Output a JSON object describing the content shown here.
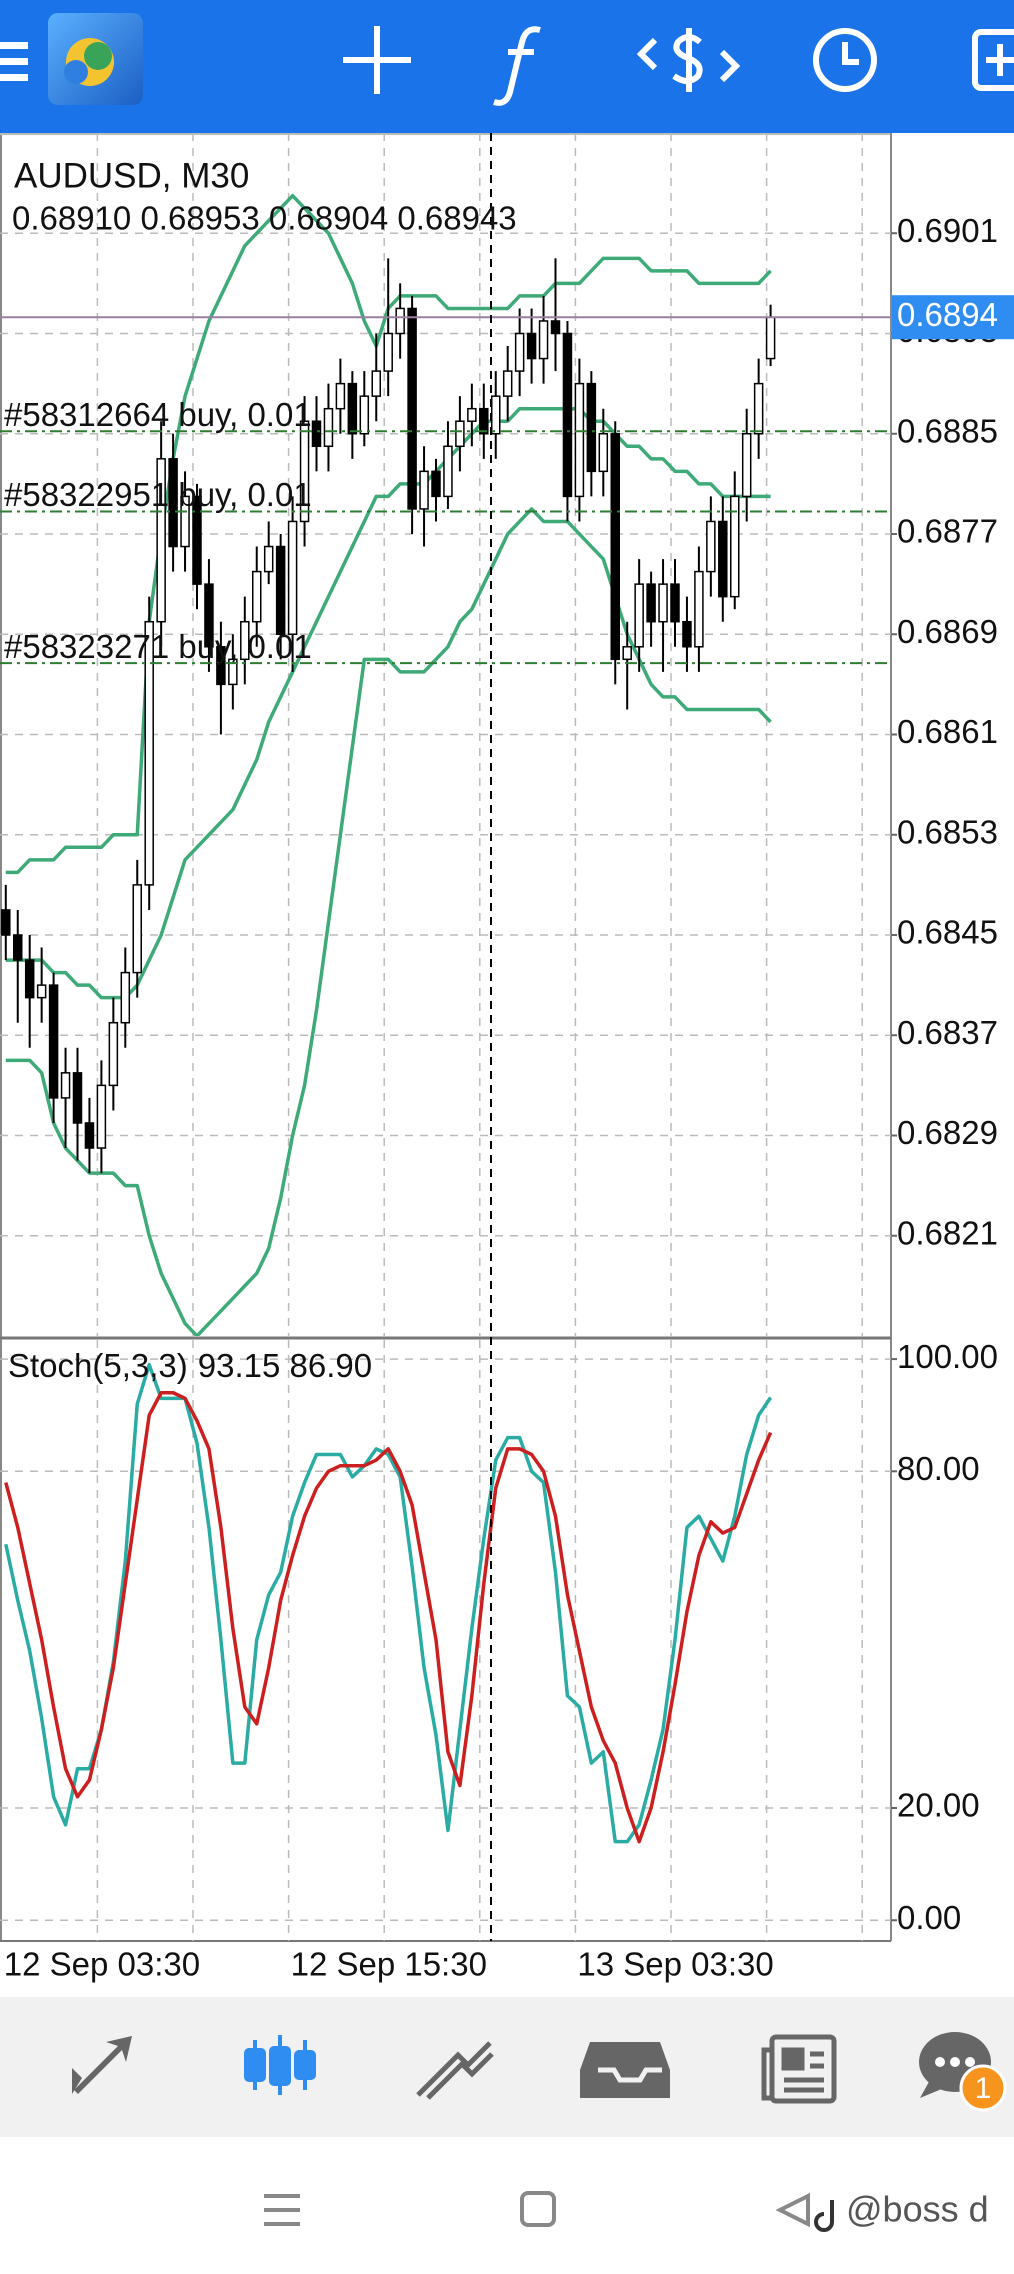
{
  "chart_data": [
    {
      "type": "candlestick",
      "title": "AUDUSD, M30",
      "subtitle": "0.68910 0.68953 0.68904 0.68943",
      "open": [
        0.6847,
        0.6845,
        0.6843,
        0.684,
        0.6841,
        0.6832,
        0.6834,
        0.683,
        0.6828,
        0.6833,
        0.6838,
        0.6842,
        0.6849,
        0.687,
        0.6883,
        0.6876,
        0.688,
        0.6873,
        0.6868,
        0.6865,
        0.6867,
        0.687,
        0.6874,
        0.6876,
        0.6869,
        0.6878,
        0.6886,
        0.6884,
        0.6887,
        0.6889,
        0.6885,
        0.6888,
        0.689,
        0.6893,
        0.6895,
        0.6879,
        0.6882,
        0.688,
        0.6884,
        0.6886,
        0.6887,
        0.6885,
        0.6888,
        0.689,
        0.6893,
        0.6891,
        0.6894,
        0.6893,
        0.688,
        0.6889,
        0.6882,
        0.6885,
        0.6867,
        0.6868,
        0.6873,
        0.687,
        0.6873,
        0.687,
        0.6868,
        0.6874,
        0.6878,
        0.6872,
        0.688,
        0.6885,
        0.6891
      ],
      "high": [
        0.6849,
        0.6847,
        0.6845,
        0.6844,
        0.6842,
        0.6836,
        0.6836,
        0.6832,
        0.6835,
        0.684,
        0.6844,
        0.6851,
        0.6872,
        0.6886,
        0.6885,
        0.6882,
        0.6881,
        0.6875,
        0.687,
        0.6869,
        0.6872,
        0.6876,
        0.6878,
        0.6877,
        0.688,
        0.6888,
        0.6888,
        0.6889,
        0.6891,
        0.689,
        0.689,
        0.6893,
        0.6899,
        0.6897,
        0.6896,
        0.6884,
        0.6883,
        0.6886,
        0.6888,
        0.6889,
        0.6889,
        0.689,
        0.6892,
        0.6895,
        0.6895,
        0.6896,
        0.6899,
        0.6894,
        0.6891,
        0.689,
        0.6887,
        0.6886,
        0.687,
        0.6875,
        0.6874,
        0.6875,
        0.6875,
        0.6872,
        0.6876,
        0.688,
        0.688,
        0.6882,
        0.6887,
        0.6891,
        0.68953
      ],
      "low": [
        0.6843,
        0.6838,
        0.6836,
        0.6838,
        0.683,
        0.6828,
        0.6827,
        0.6826,
        0.6826,
        0.6831,
        0.6836,
        0.684,
        0.6847,
        0.6868,
        0.6874,
        0.6874,
        0.6871,
        0.6866,
        0.6861,
        0.6863,
        0.6865,
        0.6868,
        0.6873,
        0.6867,
        0.6866,
        0.6876,
        0.6882,
        0.6882,
        0.6885,
        0.6883,
        0.6884,
        0.6886,
        0.6888,
        0.6891,
        0.6877,
        0.6876,
        0.6878,
        0.6879,
        0.6882,
        0.6884,
        0.6883,
        0.6883,
        0.6886,
        0.6888,
        0.6889,
        0.6889,
        0.689,
        0.6878,
        0.6878,
        0.688,
        0.688,
        0.6865,
        0.6863,
        0.6866,
        0.6868,
        0.6866,
        0.6868,
        0.6866,
        0.6866,
        0.6872,
        0.687,
        0.6871,
        0.6878,
        0.6883,
        0.68904
      ],
      "close": [
        0.6845,
        0.6843,
        0.684,
        0.6841,
        0.6832,
        0.6834,
        0.683,
        0.6828,
        0.6833,
        0.6838,
        0.6842,
        0.6849,
        0.687,
        0.6883,
        0.6876,
        0.688,
        0.6873,
        0.6868,
        0.6865,
        0.6867,
        0.687,
        0.6874,
        0.6876,
        0.6869,
        0.6878,
        0.6886,
        0.6884,
        0.6887,
        0.6889,
        0.6885,
        0.6888,
        0.689,
        0.6893,
        0.6895,
        0.6879,
        0.6882,
        0.688,
        0.6884,
        0.6886,
        0.6887,
        0.6885,
        0.6888,
        0.689,
        0.6893,
        0.6891,
        0.6894,
        0.6893,
        0.688,
        0.6889,
        0.6882,
        0.6885,
        0.6867,
        0.6868,
        0.6873,
        0.687,
        0.6873,
        0.687,
        0.6868,
        0.6874,
        0.6878,
        0.6872,
        0.688,
        0.6885,
        0.6889,
        0.68943
      ],
      "up_color": "#ffffff",
      "down_color": "#000000",
      "series": [
        {
          "color": "#3daa78",
          "values": [
            0.685,
            0.685,
            0.6851,
            0.6851,
            0.6851,
            0.6852,
            0.6852,
            0.6852,
            0.6852,
            0.6853,
            0.6853,
            0.6853,
            0.687,
            0.6877,
            0.6883,
            0.6888,
            0.6891,
            0.6894,
            0.6896,
            0.6898,
            0.69,
            0.6901,
            0.6902,
            0.6903,
            0.6904,
            0.6903,
            0.6902,
            0.6901,
            0.6899,
            0.6897,
            0.6894,
            0.6892,
            0.6895,
            0.6896,
            0.6896,
            0.6896,
            0.6896,
            0.6895,
            0.6895,
            0.6895,
            0.6895,
            0.6895,
            0.6895,
            0.6896,
            0.6896,
            0.6896,
            0.6897,
            0.6897,
            0.6897,
            0.6898,
            0.6899,
            0.6899,
            0.6899,
            0.6899,
            0.6898,
            0.6898,
            0.6898,
            0.6898,
            0.6897,
            0.6897,
            0.6897,
            0.6897,
            0.6897,
            0.6897,
            0.6898
          ]
        },
        {
          "color": "#3daa78",
          "values": [
            0.6843,
            0.6843,
            0.6843,
            0.6843,
            0.6842,
            0.6842,
            0.6841,
            0.6841,
            0.684,
            0.684,
            0.684,
            0.6841,
            0.6843,
            0.6845,
            0.6848,
            0.6851,
            0.6852,
            0.6853,
            0.6854,
            0.6855,
            0.6857,
            0.6859,
            0.6862,
            0.6864,
            0.6866,
            0.6868,
            0.687,
            0.6872,
            0.6874,
            0.6876,
            0.6878,
            0.688,
            0.688,
            0.6881,
            0.6881,
            0.6881,
            0.6882,
            0.6883,
            0.6884,
            0.6885,
            0.6886,
            0.6886,
            0.6886,
            0.6887,
            0.6887,
            0.6887,
            0.6887,
            0.6887,
            0.6887,
            0.6886,
            0.6886,
            0.6885,
            0.6884,
            0.6884,
            0.6883,
            0.6883,
            0.6882,
            0.6882,
            0.6881,
            0.6881,
            0.688,
            0.688,
            0.688,
            0.688,
            0.688
          ]
        },
        {
          "color": "#3daa78",
          "values": [
            0.6835,
            0.6835,
            0.6835,
            0.6834,
            0.683,
            0.6828,
            0.6827,
            0.6826,
            0.6826,
            0.6826,
            0.6825,
            0.6825,
            0.6821,
            0.6818,
            0.6816,
            0.6814,
            0.6813,
            0.6814,
            0.6815,
            0.6816,
            0.6817,
            0.6818,
            0.682,
            0.6824,
            0.6829,
            0.6833,
            0.6839,
            0.6846,
            0.6853,
            0.686,
            0.6867,
            0.6867,
            0.6867,
            0.6866,
            0.6866,
            0.6866,
            0.6867,
            0.6868,
            0.687,
            0.6871,
            0.6873,
            0.6875,
            0.6877,
            0.6878,
            0.6879,
            0.6878,
            0.6878,
            0.6878,
            0.6877,
            0.6876,
            0.6875,
            0.6872,
            0.6869,
            0.6867,
            0.6865,
            0.6864,
            0.6864,
            0.6863,
            0.6863,
            0.6863,
            0.6863,
            0.6863,
            0.6863,
            0.6863,
            0.6862
          ]
        }
      ],
      "ylim": [
        0.6813,
        0.6909
      ],
      "yticks": [
        0.6821,
        0.6829,
        0.6837,
        0.6845,
        0.6853,
        0.6861,
        0.6869,
        0.6877,
        0.6885,
        0.6893,
        0.6901
      ],
      "grid": true,
      "current_price": {
        "value": 0.68943,
        "label": "0.6894",
        "color": "#2f8cf0"
      },
      "orders": [
        {
          "label": "#58312664 buy, 0.01",
          "price": 0.68852
        },
        {
          "label": "#58322951 buy, 0.01",
          "price": 0.68788
        },
        {
          "label": "#58323271 buy, 0.01",
          "price": 0.68667
        }
      ],
      "order_color": "#2e7d32"
    },
    {
      "type": "line",
      "title": "Stoch(5,3,3)",
      "subtitle": "93.15 86.90",
      "categories": [
        "12 Sep 03:30",
        null,
        null,
        null,
        null,
        null,
        null,
        null,
        null,
        null,
        null,
        null,
        null,
        null,
        null,
        null,
        null,
        null,
        null,
        null,
        null,
        null,
        null,
        null,
        "12 Sep 15:30",
        null,
        null,
        null,
        null,
        null,
        null,
        null,
        null,
        null,
        null,
        null,
        null,
        null,
        null,
        null,
        null,
        null,
        null,
        null,
        null,
        null,
        null,
        null,
        "13 Sep 03:30",
        null,
        null,
        null,
        null,
        null,
        null,
        null,
        null,
        null,
        null,
        null,
        null,
        null,
        null,
        null,
        null
      ],
      "series": [
        {
          "color": "#2aaca4",
          "values": [
            67,
            57,
            48,
            36,
            22,
            17,
            27,
            27,
            34,
            46,
            64,
            92,
            99,
            93,
            93,
            93,
            85,
            70,
            50,
            28,
            28,
            50,
            58,
            62,
            72,
            78,
            83,
            83,
            83,
            79,
            81,
            84,
            83,
            79,
            63,
            45,
            33,
            16,
            34,
            52,
            68,
            82,
            86,
            86,
            80,
            78,
            62,
            40,
            38,
            28,
            30,
            14,
            14,
            17,
            25,
            34,
            50,
            70,
            72,
            68,
            64,
            72,
            83,
            90,
            93.15
          ]
        },
        {
          "color": "#cc1f1f",
          "values": [
            78,
            70,
            60,
            50,
            38,
            27,
            22,
            25,
            34,
            45,
            60,
            75,
            90,
            94,
            94,
            93,
            89,
            84,
            70,
            52,
            38,
            35,
            45,
            57,
            65,
            72,
            77,
            80,
            81,
            81,
            81,
            82,
            84,
            80,
            74,
            62,
            50,
            30,
            24,
            40,
            60,
            77,
            84,
            84,
            83,
            80,
            72,
            58,
            48,
            38,
            32,
            28,
            20,
            14,
            20,
            30,
            42,
            55,
            65,
            71,
            69,
            70,
            76,
            82,
            86.9
          ]
        }
      ],
      "ylim": [
        -3.7,
        103.4
      ],
      "yticks": [
        {
          "value": 0,
          "label": "0.00"
        },
        {
          "value": 20,
          "label": "20.00"
        },
        {
          "value": 80,
          "label": "80.00"
        },
        {
          "value": 100,
          "label": "100.00"
        }
      ],
      "grid": true
    }
  ],
  "bottom_nav": {
    "badge": "1"
  },
  "watermark": "@boss d"
}
